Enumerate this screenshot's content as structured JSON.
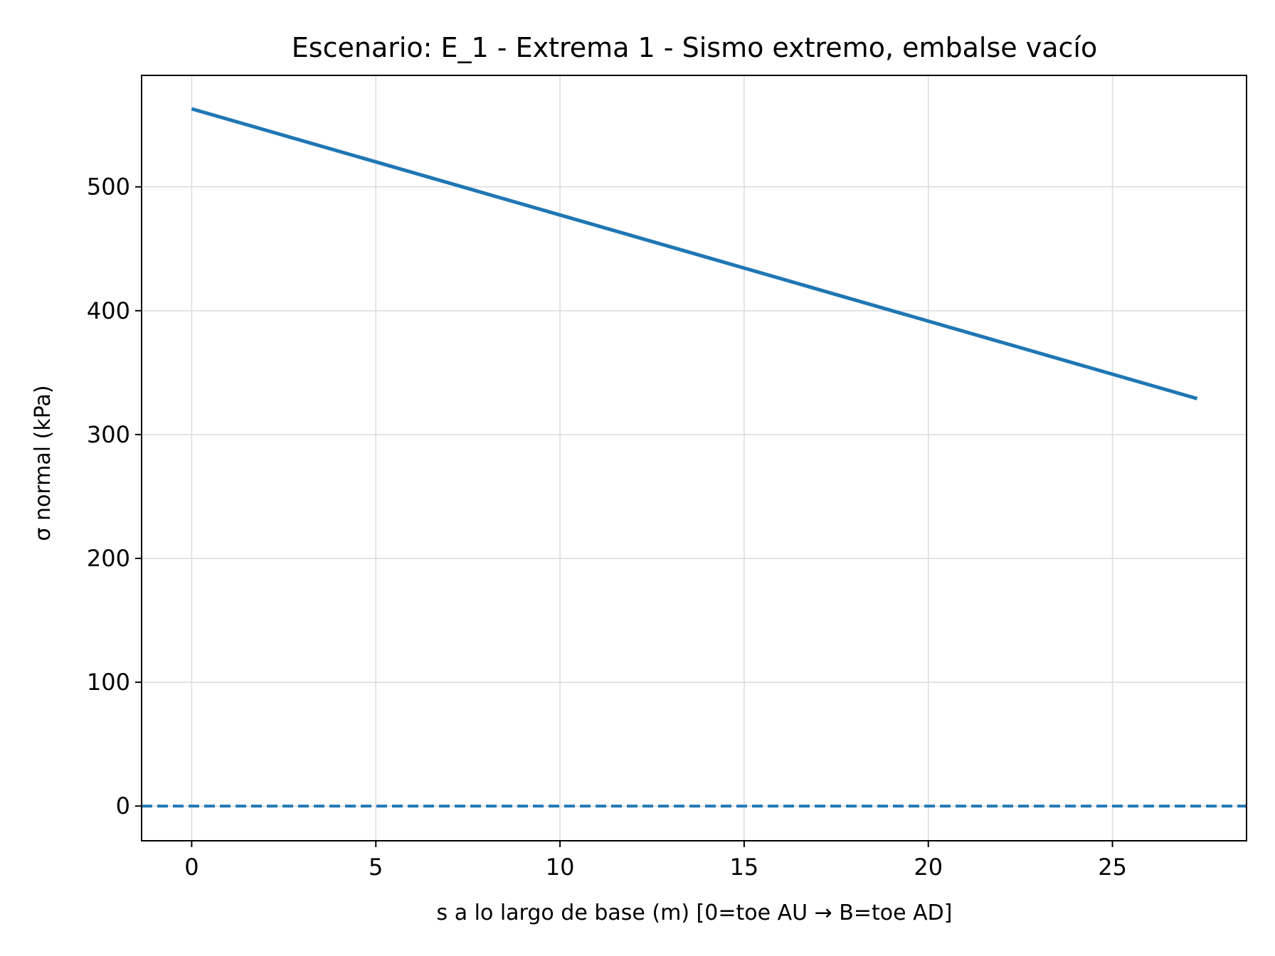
{
  "chart_data": {
    "type": "line",
    "title": "Escenario: E_1 - Extrema 1 - Sismo extremo, embalse vacío",
    "xlabel": "s a lo largo de base (m)  [0=toe AU → B=toe AD]",
    "ylabel": "σ normal (kPa)",
    "xlim": [
      -1.36,
      28.64
    ],
    "ylim": [
      -28,
      590
    ],
    "xticks": [
      0,
      5,
      10,
      15,
      20,
      25
    ],
    "yticks": [
      0,
      100,
      200,
      300,
      400,
      500
    ],
    "xtick_labels": [
      "0",
      "5",
      "10",
      "15",
      "20",
      "25"
    ],
    "ytick_labels": [
      "0",
      "100",
      "200",
      "300",
      "400",
      "500"
    ],
    "grid": true,
    "series": [
      {
        "x": [
          0,
          27.3
        ],
        "y": [
          563,
          329
        ],
        "style": "solid",
        "color": "#1f77b4"
      }
    ],
    "reference_lines": [
      {
        "y": 0,
        "style": "dashed",
        "color": "#1f77b4"
      }
    ]
  }
}
